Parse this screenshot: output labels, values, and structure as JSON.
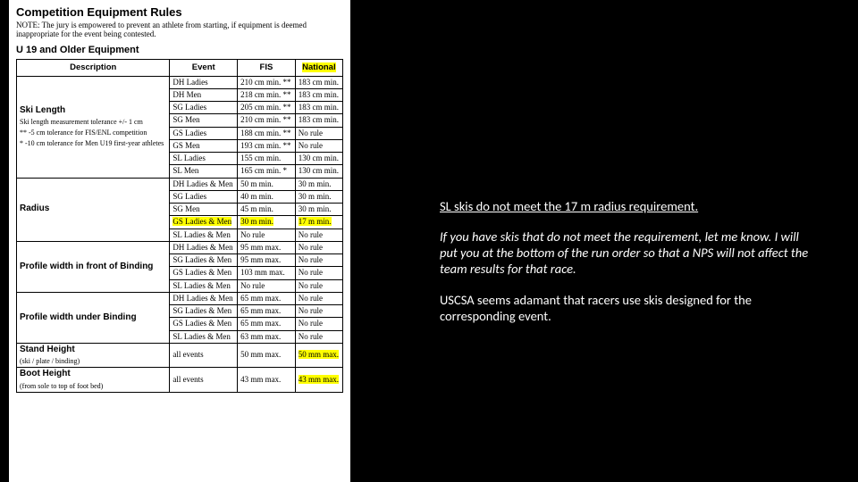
{
  "doc": {
    "title": "Competition Equipment Rules",
    "note": "NOTE: The jury is empowered to prevent an athlete from starting, if equipment is deemed inappropriate for the event being contested.",
    "subtitle": "U 19 and Older Equipment",
    "headers": {
      "desc": "Description",
      "event": "Event",
      "fis": "FIS",
      "national": "National"
    },
    "sections": [
      {
        "desc_head": "Ski Length",
        "desc_lines": [
          "Ski length measurement tolerance +/- 1 cm",
          "** -5 cm tolerance for FIS/ENL competition",
          "* -10 cm tolerance for Men U19 first-year athletes"
        ],
        "rows": [
          {
            "event": "DH Ladies",
            "fis": "210 cm min. **",
            "nat": "183 cm min.",
            "hl": false
          },
          {
            "event": "DH Men",
            "fis": "218 cm min. **",
            "nat": "183 cm min.",
            "hl": false
          },
          {
            "event": "SG Ladies",
            "fis": "205 cm min. **",
            "nat": "183 cm min.",
            "hl": false
          },
          {
            "event": "SG Men",
            "fis": "210 cm min. **",
            "nat": "183 cm min.",
            "hl": false
          },
          {
            "event": "GS Ladies",
            "fis": "188 cm min. **",
            "nat": "No rule",
            "hl": false
          },
          {
            "event": "GS Men",
            "fis": "193 cm min. **",
            "nat": "No rule",
            "hl": false
          },
          {
            "event": "SL Ladies",
            "fis": "155 cm min.",
            "nat": "130 cm min.",
            "hl": false
          },
          {
            "event": "SL Men",
            "fis": "165 cm min. *",
            "nat": "130 cm min.",
            "hl": false
          }
        ]
      },
      {
        "desc_head": "Radius",
        "desc_lines": [],
        "rows": [
          {
            "event": "DH Ladies & Men",
            "fis": "50 m min.",
            "nat": "30 m min.",
            "hl": false
          },
          {
            "event": "SG Ladies",
            "fis": "40 m min.",
            "nat": "30 m min.",
            "hl": false
          },
          {
            "event": "SG Men",
            "fis": "45 m min.",
            "nat": "30 m min.",
            "hl": false
          },
          {
            "event": "GS Ladies & Men",
            "fis": "30 m min.",
            "nat": "17 m min.",
            "hl": true
          },
          {
            "event": "SL Ladies & Men",
            "fis": "No rule",
            "nat": "No rule",
            "hl": false
          }
        ]
      },
      {
        "desc_head": "Profile width in front of Binding",
        "desc_lines": [],
        "rows": [
          {
            "event": "DH Ladies & Men",
            "fis": "95 mm max.",
            "nat": "No rule",
            "hl": false
          },
          {
            "event": "SG Ladies & Men",
            "fis": "95 mm max.",
            "nat": "No rule",
            "hl": false
          },
          {
            "event": "GS Ladies & Men",
            "fis": "103 mm max.",
            "nat": "No rule",
            "hl": false
          },
          {
            "event": "SL Ladies & Men",
            "fis": "No rule",
            "nat": "No rule",
            "hl": false
          }
        ]
      },
      {
        "desc_head": "Profile width under Binding",
        "desc_lines": [],
        "rows": [
          {
            "event": "DH Ladies & Men",
            "fis": "65 mm max.",
            "nat": "No rule",
            "hl": false
          },
          {
            "event": "SG Ladies & Men",
            "fis": "65 mm max.",
            "nat": "No rule",
            "hl": false
          },
          {
            "event": "GS Ladies & Men",
            "fis": "65 mm max.",
            "nat": "No rule",
            "hl": false
          },
          {
            "event": "SL Ladies & Men",
            "fis": "63 mm max.",
            "nat": "No rule",
            "hl": false
          }
        ]
      },
      {
        "desc_head": "Stand Height",
        "desc_lines": [
          "(ski / plate / binding)"
        ],
        "rows": [
          {
            "event": "all events",
            "fis": "50 mm max.",
            "nat": "50 mm max.",
            "hl_nat": true
          }
        ]
      },
      {
        "desc_head": "Boot Height",
        "desc_lines": [
          "(from sole to top of foot bed)"
        ],
        "rows": [
          {
            "event": "all events",
            "fis": "43 mm max.",
            "nat": "43 mm max.",
            "hl_nat": true
          }
        ]
      }
    ]
  },
  "side": {
    "p1": "SL skis do not meet the 17 m radius requirement.",
    "p2": "If you have skis that do not meet the requirement, let me know.  I will put you at the bottom of the run order so that a NPS will not affect the team results for that race.",
    "p3": "USCSA seems adamant that racers use skis designed for the corresponding event."
  }
}
